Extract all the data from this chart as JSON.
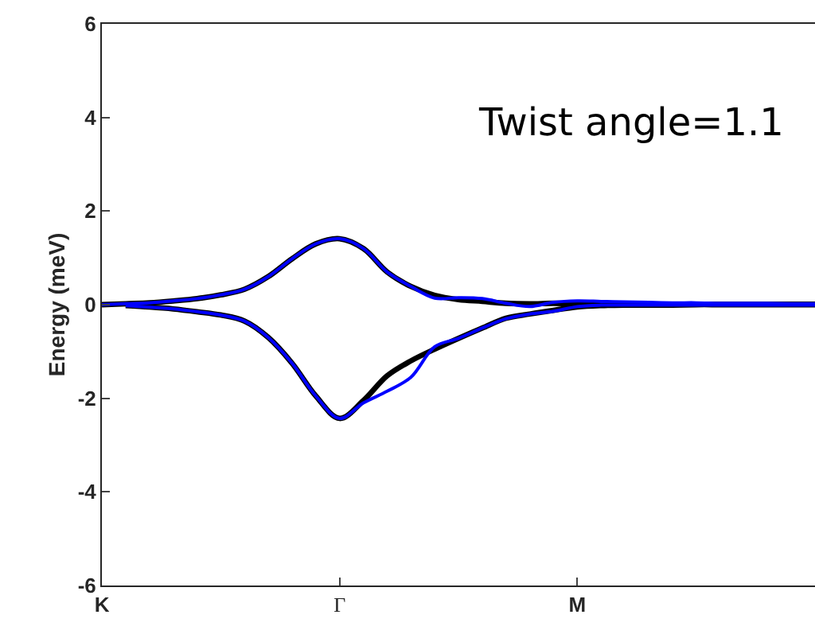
{
  "chart_data": {
    "type": "line",
    "ylabel": "Energy (meV)",
    "annotations": [
      "Twist angle=1.1"
    ],
    "categories": [
      "K",
      null,
      null,
      null,
      null,
      null,
      null,
      null,
      null,
      null,
      "Γ",
      null,
      null,
      null,
      null,
      null,
      null,
      null,
      null,
      null,
      "M",
      null,
      null,
      null,
      null,
      null,
      null,
      null,
      null,
      null,
      null
    ],
    "ylim": [
      -6,
      6
    ],
    "yticks": [
      -6,
      -4,
      -2,
      0,
      2,
      4,
      6
    ],
    "marker": "none",
    "line_style": "solid",
    "series": [
      {
        "color": "#000000",
        "values": [
          0,
          0.02,
          0.04,
          0.08,
          0.13,
          0.21,
          0.33,
          0.6,
          0.98,
          1.3,
          1.41,
          1.2,
          0.7,
          0.39,
          0.2,
          0.11,
          0.07,
          0.03,
          0.02,
          0.03,
          0.02,
          0.02,
          0.02,
          0.01,
          0.01,
          0.01,
          0.01,
          0.01,
          0.01,
          0.01,
          0.01
        ]
      },
      {
        "color": "#000000",
        "values": [
          null,
          -0.02,
          -0.05,
          -0.09,
          -0.15,
          -0.22,
          -0.35,
          -0.7,
          -1.25,
          -1.95,
          -2.43,
          -2.05,
          -1.52,
          -1.2,
          -0.95,
          -0.72,
          -0.5,
          -0.29,
          -0.2,
          -0.12,
          -0.05,
          -0.02,
          -0.01,
          -0.01,
          -0.01,
          0,
          0,
          0,
          0,
          0,
          0
        ]
      },
      {
        "color": "#0000ff",
        "values": [
          0,
          0.02,
          0.04,
          0.08,
          0.13,
          0.21,
          0.33,
          0.6,
          0.98,
          1.3,
          1.41,
          1.2,
          0.7,
          0.39,
          0.14,
          0.15,
          0.13,
          0.03,
          -0.04,
          0.05,
          0.08,
          0.07,
          0.06,
          0.05,
          0.04,
          0.04,
          0.03,
          0.03,
          0.03,
          0.02,
          0.02
        ]
      },
      {
        "color": "#0000ff",
        "values": [
          null,
          -0.02,
          -0.05,
          -0.09,
          -0.15,
          -0.22,
          -0.35,
          -0.7,
          -1.25,
          -1.95,
          -2.43,
          -2.1,
          -1.85,
          -1.55,
          -0.9,
          -0.72,
          -0.5,
          -0.3,
          -0.2,
          -0.14,
          -0.04,
          -0.01,
          -0.01,
          -0.01,
          -0.01,
          -0.01,
          -0.01,
          -0.01,
          -0.01,
          -0.01,
          -0.01
        ]
      }
    ]
  }
}
